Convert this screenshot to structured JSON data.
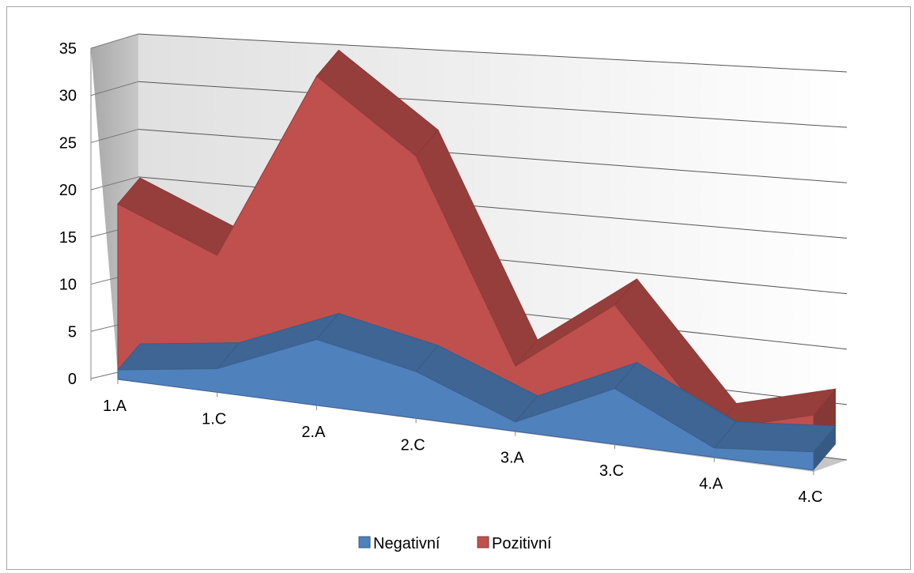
{
  "chart_data": {
    "type": "area",
    "style": "3d",
    "categories": [
      "1.A",
      "1.C",
      "2.A",
      "2.C",
      "3.A",
      "3.C",
      "4.A",
      "4.C"
    ],
    "y_ticks": [
      "0",
      "5",
      "10",
      "15",
      "20",
      "25",
      "30",
      "35"
    ],
    "ylim": [
      0,
      35
    ],
    "stacked": true,
    "grid": true,
    "legend_position": "bottom",
    "series": [
      {
        "name": "Negativní",
        "values": [
          1,
          2.5,
          7,
          5,
          1,
          6,
          1,
          2
        ],
        "color": "#4f81bd"
      },
      {
        "name": "Pozitivní",
        "values": [
          17.5,
          12,
          28,
          23,
          6,
          9,
          2,
          4
        ],
        "color": "#c0504d"
      }
    ]
  }
}
